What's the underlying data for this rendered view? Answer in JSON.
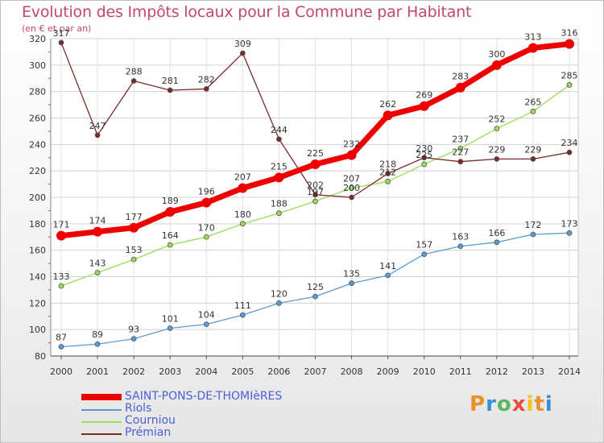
{
  "header": {
    "title": "Evolution des Impôts locaux pour la Commune par Habitant",
    "subtitle": "(en € et par an)"
  },
  "logo": {
    "text": "Proxiti",
    "colors": [
      "#e8932a",
      "#3a8fd4",
      "#5cb85c",
      "#e74c3c",
      "#f0c419"
    ]
  },
  "chart_data": {
    "type": "line",
    "title": "Evolution des Impôts locaux pour la Commune par Habitant",
    "subtitle": "(en € et par an)",
    "xlabel": "",
    "ylabel": "",
    "ylim": [
      80,
      320
    ],
    "yticks": [
      80,
      100,
      120,
      140,
      160,
      180,
      200,
      220,
      240,
      260,
      280,
      300,
      320
    ],
    "grid": true,
    "legend_position": "bottom-left",
    "categories": [
      "2000",
      "2001",
      "2002",
      "2003",
      "2004",
      "2005",
      "2006",
      "2007",
      "2008",
      "2009",
      "2010",
      "2011",
      "2012",
      "2013",
      "2014"
    ],
    "series": [
      {
        "name": "Riols",
        "color": "#5b9bd5",
        "values": [
          87,
          89,
          93,
          101,
          104,
          111,
          120,
          125,
          135,
          141,
          157,
          163,
          166,
          172,
          173
        ]
      },
      {
        "name": "Courniou",
        "color": "#99dd55",
        "values": [
          133,
          143,
          153,
          164,
          170,
          180,
          188,
          197,
          207,
          212,
          225,
          237,
          252,
          265,
          285
        ]
      },
      {
        "name": "Prémian",
        "color": "#7a2a2a",
        "values": [
          317,
          247,
          288,
          281,
          282,
          309,
          244,
          202,
          200,
          218,
          230,
          227,
          229,
          229,
          234
        ]
      },
      {
        "name": "SAINT-PONS-DE-THOMIèRES",
        "color": "#ee0000",
        "values": [
          171,
          174,
          177,
          189,
          196,
          207,
          215,
          225,
          232,
          262,
          269,
          283,
          300,
          313,
          316
        ]
      }
    ],
    "legend_order": [
      "SAINT-PONS-DE-THOMIèRES",
      "Riols",
      "Courniou",
      "Prémian"
    ],
    "legend_label_color": "#4a5fd6"
  }
}
